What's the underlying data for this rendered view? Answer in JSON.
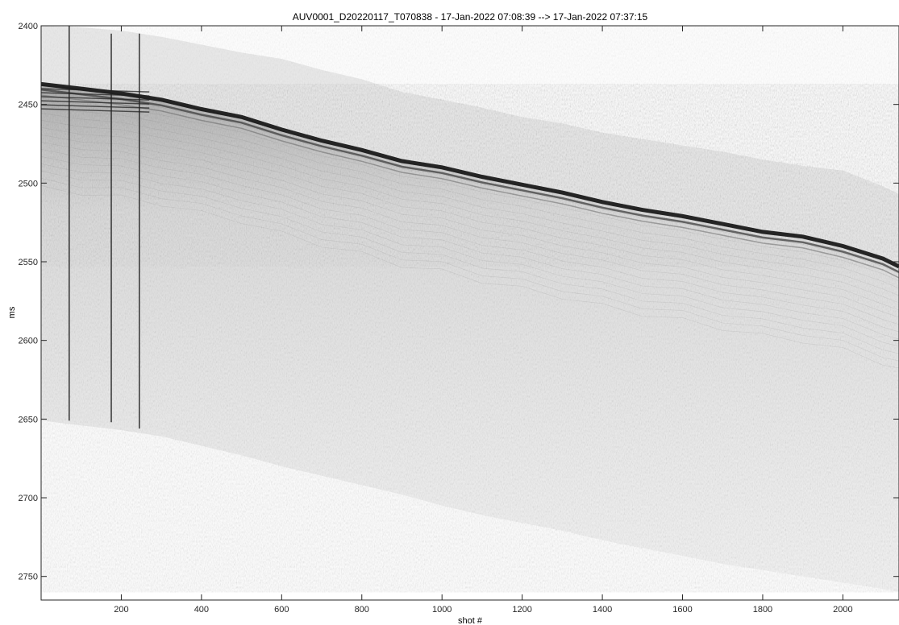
{
  "chart_data": {
    "type": "heatmap",
    "title": "AUV0001_D20220117_T070838 - 17-Jan-2022 07:08:39 --> 17-Jan-2022 07:37:15",
    "xlabel": "shot #",
    "ylabel": "ms",
    "xlim": [
      0,
      2140
    ],
    "ylim": [
      2400,
      2765
    ],
    "y_reversed": true,
    "colormap": "gray (white = low amplitude, black = high amplitude)",
    "x_ticks": [
      200,
      400,
      600,
      800,
      1000,
      1200,
      1400,
      1600,
      1800,
      2000
    ],
    "y_ticks": [
      2400,
      2450,
      2500,
      2550,
      2600,
      2650,
      2700,
      2750
    ],
    "seafloor_reflector": {
      "x": [
        0,
        100,
        200,
        300,
        400,
        500,
        600,
        700,
        800,
        900,
        1000,
        1100,
        1200,
        1300,
        1400,
        1500,
        1600,
        1700,
        1800,
        1900,
        2000,
        2100,
        2140
      ],
      "y": [
        2437,
        2440,
        2443,
        2447,
        2453,
        2458,
        2466,
        2473,
        2479,
        2486,
        2490,
        2496,
        2501,
        2506,
        2512,
        2517,
        2521,
        2526,
        2531,
        2534,
        2540,
        2548,
        2553
      ]
    },
    "water_column_top": {
      "x": [
        0,
        100,
        200,
        300,
        400,
        500,
        600,
        700,
        800,
        900,
        1000,
        1100,
        1200,
        1300,
        1400,
        1500,
        1600,
        1700,
        1800,
        1900,
        2000,
        2100,
        2140
      ],
      "y": [
        2400,
        2401,
        2403,
        2407,
        2412,
        2417,
        2421,
        2428,
        2434,
        2442,
        2447,
        2452,
        2458,
        2462,
        2468,
        2472,
        2476,
        2480,
        2485,
        2489,
        2492,
        2502,
        2507
      ]
    },
    "data_bottom": {
      "x": [
        0,
        100,
        200,
        300,
        400,
        500,
        600,
        700,
        800,
        900,
        1000,
        1100,
        1200,
        1300,
        1400,
        1500,
        1600,
        1700,
        1800,
        1900,
        2000,
        2100,
        2140
      ],
      "y": [
        2651,
        2654,
        2657,
        2661,
        2667,
        2673,
        2680,
        2686,
        2692,
        2698,
        2705,
        2711,
        2716,
        2721,
        2727,
        2732,
        2737,
        2742,
        2746,
        2750,
        2754,
        2758,
        2760
      ]
    },
    "vertical_artifacts": [
      {
        "x": 70,
        "ymin": 2400,
        "ymax": 2651
      },
      {
        "x": 175,
        "ymin": 2405,
        "ymax": 2652
      },
      {
        "x": 245,
        "ymin": 2405,
        "ymax": 2656
      }
    ]
  }
}
